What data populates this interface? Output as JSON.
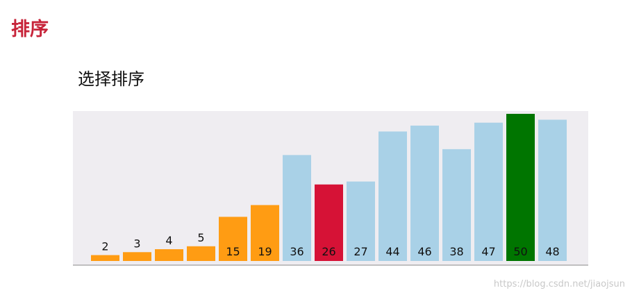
{
  "header": {
    "title": "排序"
  },
  "chart_data": {
    "type": "bar",
    "title": "选择排序",
    "values": [
      2,
      3,
      4,
      5,
      15,
      19,
      36,
      26,
      27,
      44,
      46,
      38,
      47,
      50,
      48
    ],
    "colors": [
      "#ff9c13",
      "#ff9c13",
      "#ff9c13",
      "#ff9c13",
      "#ff9c13",
      "#ff9c13",
      "#a9d1e7",
      "#d61236",
      "#a9d1e7",
      "#a9d1e7",
      "#a9d1e7",
      "#a9d1e7",
      "#a9d1e7",
      "#007500",
      "#a9d1e7"
    ]
  },
  "watermark": "https://blog.csdn.net/jiaojsun"
}
